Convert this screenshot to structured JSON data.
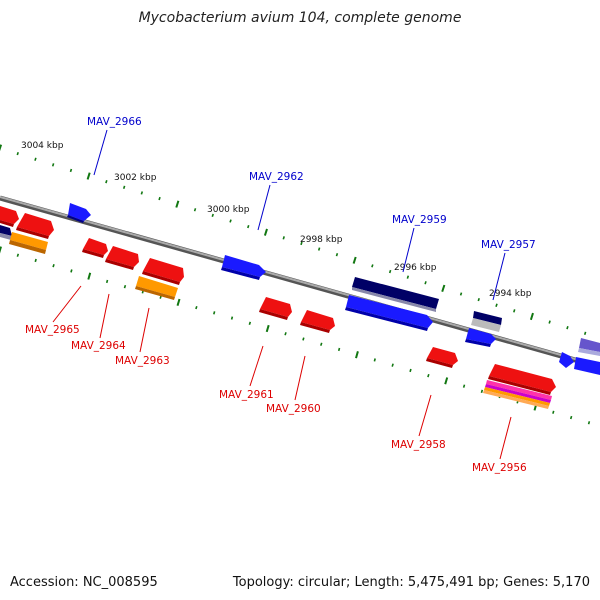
{
  "title": "Mycobacterium avium 104, complete genome",
  "footer": {
    "accession": "Accession: NC_008595",
    "summary": "Topology: circular; Length: 5,475,491 bp; Genes: 5,170"
  },
  "colors": {
    "forward_label": "#0000cc",
    "reverse_label": "#dd0000",
    "forward_gene": "#1a1aff",
    "reverse_gene": "#ee1111",
    "dark_gene": "#000066",
    "orange_gene": "#ff9900",
    "tick": "#117711",
    "backbone": "#888888"
  },
  "ruler_labels": [
    "3004 kbp",
    "3002 kbp",
    "3000 kbp",
    "2998 kbp",
    "2996 kbp",
    "2994 kbp"
  ],
  "forward_genes": [
    "MAV_2966",
    "MAV_2962",
    "MAV_2959",
    "MAV_2957"
  ],
  "reverse_genes": [
    "MAV_2965",
    "MAV_2964",
    "MAV_2963",
    "MAV_2961",
    "MAV_2960",
    "MAV_2958",
    "MAV_2956"
  ]
}
